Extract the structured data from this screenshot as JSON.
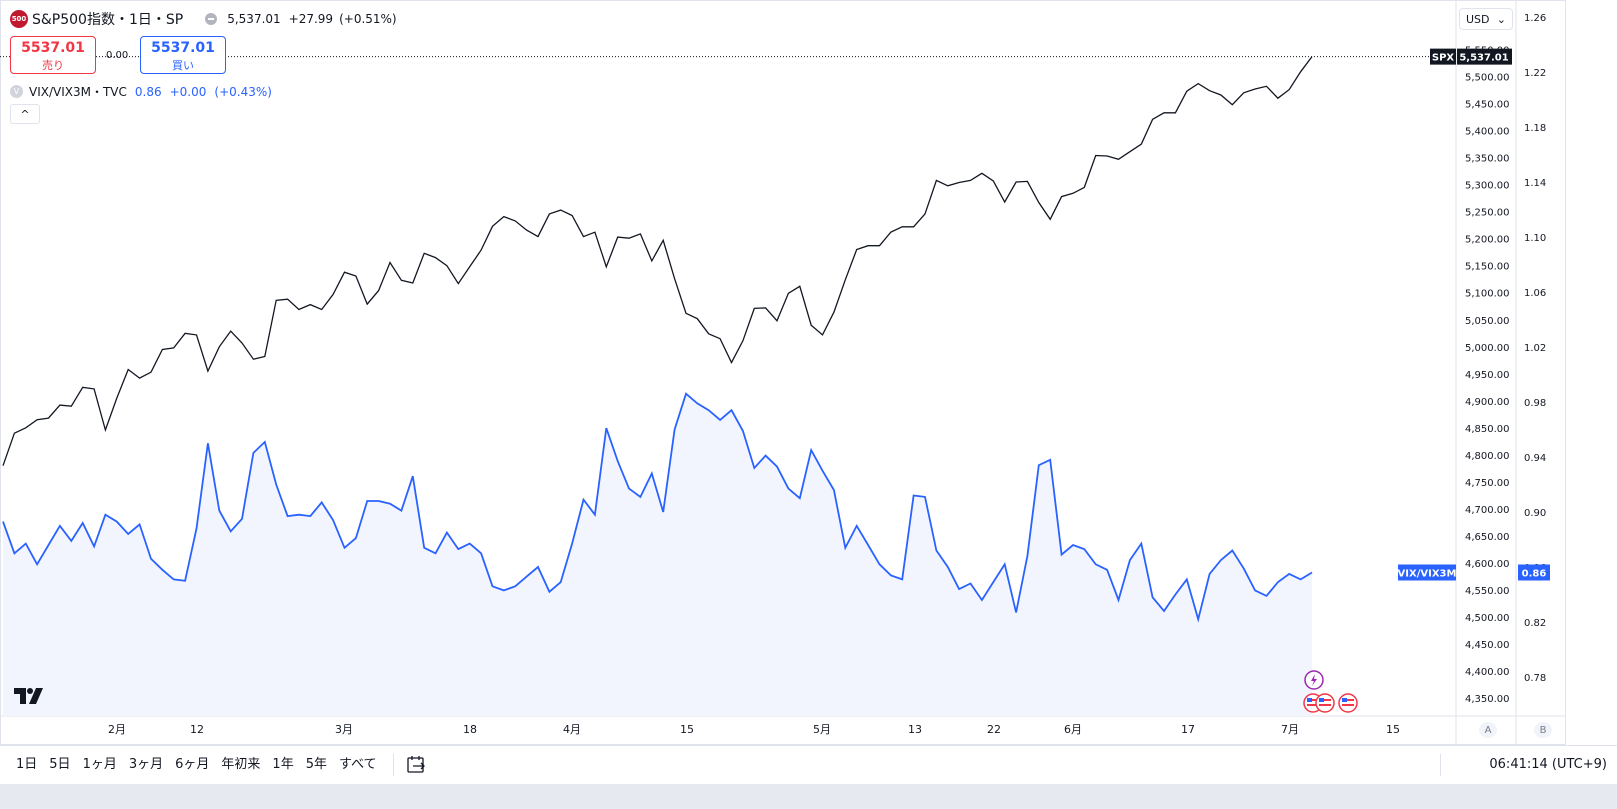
{
  "symbol": {
    "badge": "500",
    "name": "S&P500指数・1日・SP",
    "last": "5,537.01",
    "change": "+27.99",
    "change_pct": "(+0.51%)"
  },
  "trade": {
    "sell_price": "5537.01",
    "sell_label": "売り",
    "buy_price": "5537.01",
    "buy_label": "買い",
    "spread": "0.00"
  },
  "indicator": {
    "name": "VIX/VIX3M・TVC",
    "value": "0.86",
    "change": "+0.00",
    "change_pct": "(+0.43%)",
    "icon_letter": "V"
  },
  "collapse_label": "^",
  "currency": "USD",
  "scale_a": "A",
  "scale_b": "B",
  "time_ranges": [
    "1日",
    "5日",
    "1ヶ月",
    "3ヶ月",
    "6ヶ月",
    "年初来",
    "1年",
    "5年",
    "すべて"
  ],
  "clock": "06:41:14 (UTC+9)",
  "colors": {
    "spx_line": "#131722",
    "vix_line": "#2962ff",
    "vix_fill": "#f2f5fd",
    "sell": "#f23645",
    "buy": "#2962ff"
  },
  "chart_data": {
    "type": "line",
    "x_labels": [
      "2月",
      "12",
      "3月",
      "18",
      "4月",
      "15",
      "5月",
      "13",
      "22",
      "6月",
      "17",
      "7月",
      "15"
    ],
    "y_left_ticks": [
      "5,550.00",
      "5,500.00",
      "5,450.00",
      "5,400.00",
      "5,350.00",
      "5,300.00",
      "5,250.00",
      "5,200.00",
      "5,150.00",
      "5,100.00",
      "5,050.00",
      "5,000.00",
      "4,950.00",
      "4,900.00",
      "4,850.00",
      "4,800.00",
      "4,750.00",
      "4,700.00",
      "4,650.00",
      "4,600.00",
      "4,550.00",
      "4,500.00",
      "4,450.00",
      "4,400.00",
      "4,350.00"
    ],
    "y_right_ticks": [
      "1.26",
      "1.22",
      "1.18",
      "1.14",
      "1.10",
      "1.06",
      "1.02",
      "0.98",
      "0.94",
      "0.90",
      "0.86",
      "0.82",
      "0.78"
    ],
    "y_left_range": [
      4340,
      5560
    ],
    "y_right_range": [
      0.75,
      1.27
    ],
    "series": [
      {
        "name": "SPX",
        "axis": "left",
        "last_label": "5,537.01",
        "values": [
          4780,
          4840,
          4850,
          4865,
          4868,
          4892,
          4890,
          4925,
          4922,
          4846,
          4905,
          4958,
          4942,
          4953,
          4995,
          4998,
          5025,
          5022,
          4955,
          5000,
          5029,
          5007,
          4977,
          4982,
          5086,
          5088,
          5069,
          5078,
          5069,
          5097,
          5138,
          5131,
          5079,
          5104,
          5156,
          5123,
          5118,
          5173,
          5165,
          5150,
          5117,
          5148,
          5179,
          5223,
          5241,
          5233,
          5216,
          5204,
          5246,
          5253,
          5243,
          5204,
          5212,
          5148,
          5203,
          5201,
          5209,
          5159,
          5197,
          5126,
          5062,
          5052,
          5024,
          5015,
          4971,
          5011,
          5071,
          5072,
          5048,
          5099,
          5112,
          5040,
          5022,
          5064,
          5124,
          5180,
          5187,
          5187,
          5212,
          5222,
          5222,
          5246,
          5308,
          5298,
          5304,
          5308,
          5321,
          5307,
          5268,
          5305,
          5306,
          5267,
          5236,
          5278,
          5284,
          5295,
          5354,
          5353,
          5347,
          5361,
          5375,
          5421,
          5433,
          5433,
          5473,
          5487,
          5474,
          5466,
          5448,
          5470,
          5477,
          5482,
          5460,
          5476,
          5509,
          5537
        ]
      },
      {
        "name": "VIX/VIX3M",
        "axis": "right",
        "last_label": "0.86",
        "values": [
          0.893,
          0.87,
          0.877,
          0.862,
          0.876,
          0.89,
          0.879,
          0.892,
          0.875,
          0.898,
          0.893,
          0.884,
          0.891,
          0.866,
          0.858,
          0.851,
          0.85,
          0.888,
          0.95,
          0.901,
          0.886,
          0.895,
          0.943,
          0.951,
          0.92,
          0.897,
          0.898,
          0.897,
          0.907,
          0.894,
          0.874,
          0.881,
          0.908,
          0.908,
          0.906,
          0.901,
          0.926,
          0.874,
          0.87,
          0.885,
          0.873,
          0.877,
          0.87,
          0.846,
          0.843,
          0.846,
          0.853,
          0.86,
          0.842,
          0.849,
          0.877,
          0.909,
          0.898,
          0.961,
          0.937,
          0.917,
          0.911,
          0.928,
          0.9,
          0.96,
          0.986,
          0.979,
          0.974,
          0.967,
          0.974,
          0.959,
          0.932,
          0.941,
          0.933,
          0.917,
          0.91,
          0.945,
          0.93,
          0.916,
          0.874,
          0.89,
          0.876,
          0.862,
          0.854,
          0.851,
          0.912,
          0.911,
          0.872,
          0.86,
          0.844,
          0.848,
          0.836,
          0.849,
          0.862,
          0.827,
          0.868,
          0.934,
          0.938,
          0.869,
          0.876,
          0.873,
          0.862,
          0.858,
          0.836,
          0.865,
          0.877,
          0.838,
          0.828,
          0.84,
          0.851,
          0.822,
          0.855,
          0.865,
          0.872,
          0.859,
          0.843,
          0.839,
          0.849,
          0.855,
          0.851,
          0.856
        ]
      }
    ],
    "grid": false
  }
}
